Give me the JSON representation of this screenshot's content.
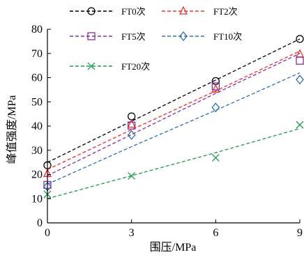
{
  "chart_data": {
    "type": "scatter",
    "xlabel": "围压/MPa",
    "ylabel": "峰值强度/MPa",
    "xlim": [
      0,
      9
    ],
    "ylim": [
      0,
      80
    ],
    "xticks": [
      0,
      3,
      6,
      9
    ],
    "yticks": [
      0,
      10,
      20,
      30,
      40,
      50,
      60,
      70,
      80
    ],
    "grid": false,
    "legend_position": "top",
    "x": [
      0,
      3,
      6,
      9
    ],
    "series": [
      {
        "name": "FT0次",
        "color": "#000000",
        "marker": "circle",
        "values": [
          23.8,
          44.0,
          58.6,
          76.0
        ],
        "fit": [
          25.0,
          42.0,
          59.0,
          76.0
        ]
      },
      {
        "name": "FT2次",
        "color": "#e8322c",
        "marker": "triangle",
        "values": [
          20.3,
          40.7,
          55.2,
          69.7
        ],
        "fit": [
          22.0,
          38.5,
          54.5,
          71.0
        ]
      },
      {
        "name": "FT5次",
        "color": "#8b2ca0",
        "marker": "square",
        "values": [
          15.7,
          40.2,
          56.4,
          67.0
        ],
        "fit": [
          19.5,
          36.5,
          53.5,
          70.0
        ]
      },
      {
        "name": "FT10次",
        "color": "#2e6db3",
        "marker": "diamond",
        "values": [
          15.0,
          36.3,
          47.7,
          59.2
        ],
        "fit": [
          16.0,
          31.5,
          46.5,
          62.0
        ]
      },
      {
        "name": "FT20次",
        "color": "#1f9a4a",
        "marker": "x",
        "values": [
          11.8,
          19.4,
          26.9,
          40.5
        ],
        "fit": [
          10.0,
          19.5,
          29.0,
          39.0
        ]
      }
    ]
  }
}
